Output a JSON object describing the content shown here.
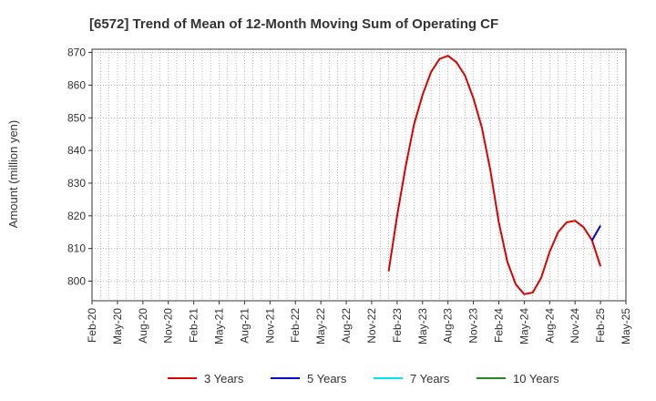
{
  "chart_data": {
    "type": "line",
    "title": "[6572]  Trend of Mean of 12-Month Moving Sum of Operating CF",
    "xlabel": "",
    "ylabel": "Amount (million yen)",
    "ylim": [
      794,
      871
    ],
    "xlim": [
      "2020-02",
      "2025-05"
    ],
    "yticks": [
      800,
      810,
      820,
      830,
      840,
      850,
      860,
      870
    ],
    "xticks": [
      "Feb-20",
      "May-20",
      "Aug-20",
      "Nov-20",
      "Feb-21",
      "May-21",
      "Aug-21",
      "Nov-21",
      "Feb-22",
      "May-22",
      "Aug-22",
      "Nov-22",
      "Feb-23",
      "May-23",
      "Aug-23",
      "Nov-23",
      "Feb-24",
      "May-24",
      "Aug-24",
      "Nov-24",
      "Feb-25",
      "May-25"
    ],
    "grid": true,
    "legend_position": "bottom",
    "series": [
      {
        "name": "3 Years",
        "color": "#dd0000",
        "x": [
          "2023-01",
          "2023-02",
          "2023-03",
          "2023-04",
          "2023-05",
          "2023-06",
          "2023-07",
          "2023-08",
          "2023-09",
          "2023-10",
          "2023-11",
          "2023-12",
          "2024-01",
          "2024-02",
          "2024-03",
          "2024-04",
          "2024-05",
          "2024-06",
          "2024-07",
          "2024-08",
          "2024-09",
          "2024-10",
          "2024-11",
          "2024-12",
          "2025-01",
          "2025-02"
        ],
        "y": [
          803,
          820,
          835,
          848,
          857,
          864,
          868,
          869,
          867,
          863,
          856,
          847,
          834,
          818,
          806,
          799,
          796,
          796.5,
          801,
          809,
          815,
          818,
          818.5,
          816.5,
          812.5,
          804.5
        ]
      },
      {
        "name": "5 Years",
        "color": "#0000cc",
        "x": [
          "2025-01",
          "2025-02"
        ],
        "y": [
          812.5,
          817
        ]
      },
      {
        "name": "7 Years",
        "color": "#00e5ee",
        "x": [],
        "y": []
      },
      {
        "name": "10 Years",
        "color": "#228b22",
        "x": [],
        "y": []
      }
    ]
  }
}
